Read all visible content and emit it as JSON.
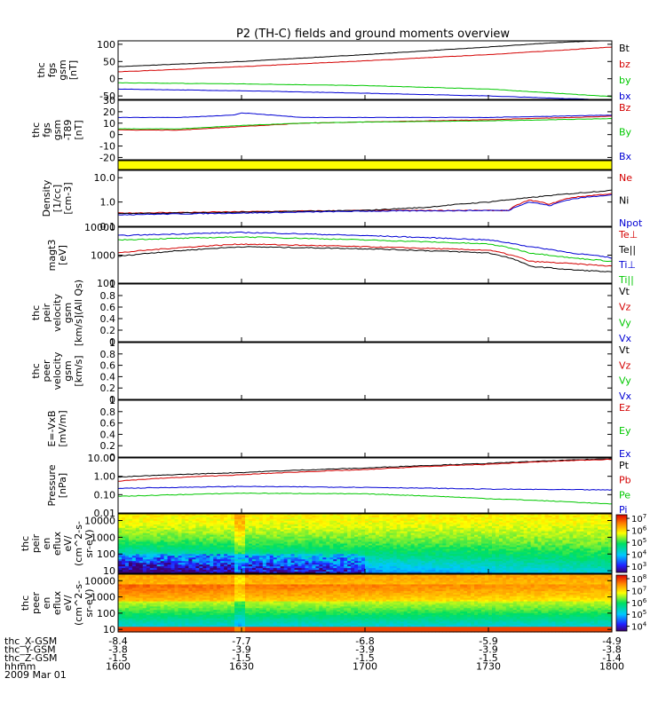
{
  "title": "P2 (TH-C) fields and ground moments overview",
  "chart_data": [
    {
      "type": "line",
      "ylabel_lines": [
        "thc",
        "fgs",
        "gsm",
        "[nT]"
      ],
      "ylim": [
        -60,
        110
      ],
      "yticks": [
        100,
        50,
        0,
        -50
      ],
      "legend_placement": "right",
      "series": [
        {
          "name": "Bt",
          "color": "#000000",
          "x": [
            0,
            30,
            60,
            90,
            105,
            120
          ],
          "y": [
            35,
            50,
            70,
            92,
            104,
            112
          ]
        },
        {
          "name": "bz",
          "color": "#d40000",
          "x": [
            0,
            30,
            60,
            90,
            120
          ],
          "y": [
            20,
            35,
            52,
            70,
            92
          ]
        },
        {
          "name": "by",
          "color": "#00c800",
          "x": [
            0,
            30,
            60,
            90,
            120
          ],
          "y": [
            -12,
            -15,
            -20,
            -30,
            -52
          ]
        },
        {
          "name": "bx",
          "color": "#0000d4",
          "x": [
            0,
            30,
            60,
            90,
            120
          ],
          "y": [
            -30,
            -35,
            -42,
            -50,
            -62
          ]
        }
      ]
    },
    {
      "type": "line",
      "ylabel_lines": [
        "thc",
        "fgs",
        "gsm",
        "-T89",
        "[nT]"
      ],
      "ylim": [
        -22,
        30
      ],
      "yticks": [
        30,
        20,
        10,
        0,
        -10,
        -20
      ],
      "legend_placement": "right",
      "series": [
        {
          "name": "Bz",
          "color": "#d40000",
          "x": [
            0,
            15,
            30,
            45,
            60,
            90,
            120
          ],
          "y": [
            4,
            4,
            7,
            10,
            11,
            13,
            16
          ]
        },
        {
          "name": "By",
          "color": "#00c800",
          "x": [
            0,
            15,
            30,
            45,
            60,
            90,
            120
          ],
          "y": [
            5,
            5,
            8,
            10,
            11,
            12,
            14
          ]
        },
        {
          "name": "Bx",
          "color": "#0000d4",
          "x": [
            0,
            15,
            28,
            30,
            45,
            60,
            90,
            120
          ],
          "y": [
            15,
            15,
            17,
            19,
            15,
            15,
            15,
            17
          ]
        }
      ]
    },
    {
      "type": "heatmap",
      "description_color": "#ffff00",
      "note": "quality flag bar"
    },
    {
      "type": "line",
      "ylabel_lines": [
        "Density",
        "[1/cc]",
        "[cm-3]"
      ],
      "yscale": "log",
      "ylim": [
        0.1,
        20
      ],
      "yticks": [
        10.0,
        1.0,
        0.1
      ],
      "ytick_labels": [
        "10.0",
        "1.0",
        "0.1"
      ],
      "legend_placement": "right",
      "series": [
        {
          "name": "Ne",
          "color": "#d40000",
          "x": [
            0,
            20,
            30,
            60,
            90,
            95,
            100,
            105,
            110,
            120
          ],
          "y": [
            0.35,
            0.38,
            0.4,
            0.45,
            0.45,
            0.45,
            1.2,
            0.8,
            1.5,
            2.2
          ]
        },
        {
          "name": "Ni",
          "color": "#000000",
          "x": [
            0,
            30,
            60,
            75,
            90,
            100,
            110,
            120
          ],
          "y": [
            0.33,
            0.38,
            0.45,
            0.6,
            1.0,
            1.5,
            2.2,
            3.0
          ]
        },
        {
          "name": "Npot",
          "color": "#0000d4",
          "x": [
            0,
            30,
            60,
            90,
            95,
            100,
            105,
            110,
            120
          ],
          "y": [
            0.3,
            0.35,
            0.42,
            0.45,
            0.45,
            1.0,
            0.7,
            1.3,
            2.0
          ]
        }
      ]
    },
    {
      "type": "line",
      "ylabel_lines": [
        "magt3",
        "[eV]"
      ],
      "yscale": "log",
      "ylim": [
        100,
        10000
      ],
      "yticks": [
        10000,
        1000,
        100
      ],
      "legend_placement": "right",
      "series": [
        {
          "name": "Te⊥",
          "color": "#d40000",
          "x": [
            0,
            30,
            60,
            90,
            100,
            110,
            120
          ],
          "y": [
            1200,
            2500,
            2000,
            1500,
            600,
            500,
            400
          ]
        },
        {
          "name": "Te||",
          "color": "#000000",
          "x": [
            0,
            30,
            60,
            90,
            100,
            110,
            120
          ],
          "y": [
            900,
            2000,
            1700,
            1200,
            400,
            300,
            250
          ]
        },
        {
          "name": "Ti⊥",
          "color": "#0000d4",
          "x": [
            0,
            30,
            60,
            90,
            100,
            110,
            120
          ],
          "y": [
            5000,
            6500,
            5000,
            3500,
            2000,
            1200,
            800
          ]
        },
        {
          "name": "Ti||",
          "color": "#00c800",
          "x": [
            0,
            30,
            60,
            90,
            100,
            110,
            120
          ],
          "y": [
            3500,
            4500,
            3500,
            2500,
            1200,
            800,
            600
          ]
        }
      ]
    },
    {
      "type": "line",
      "ylabel_lines": [
        "thc",
        "peir",
        "velocity",
        "gsm",
        "[km/s](All Qs)"
      ],
      "ylim": [
        0,
        1
      ],
      "yticks": [
        1.0,
        0.8,
        0.6,
        0.4,
        0.2,
        0.0
      ],
      "legend_placement": "right",
      "series": [
        {
          "name": "Vt",
          "color": "#000000",
          "x": [],
          "y": []
        },
        {
          "name": "Vz",
          "color": "#d40000",
          "x": [],
          "y": []
        },
        {
          "name": "Vy",
          "color": "#00c800",
          "x": [],
          "y": []
        },
        {
          "name": "Vx",
          "color": "#0000d4",
          "x": [],
          "y": []
        }
      ]
    },
    {
      "type": "line",
      "ylabel_lines": [
        "thc",
        "peer",
        "velocity",
        "gsm",
        "[km/s]"
      ],
      "ylim": [
        0,
        1
      ],
      "yticks": [
        1.0,
        0.8,
        0.6,
        0.4,
        0.2,
        0.0
      ],
      "legend_placement": "right",
      "series": [
        {
          "name": "Vt",
          "color": "#000000",
          "x": [],
          "y": []
        },
        {
          "name": "Vz",
          "color": "#d40000",
          "x": [],
          "y": []
        },
        {
          "name": "Vy",
          "color": "#00c800",
          "x": [],
          "y": []
        },
        {
          "name": "Vx",
          "color": "#0000d4",
          "x": [],
          "y": []
        }
      ]
    },
    {
      "type": "line",
      "ylabel_lines": [
        "E=-VxB",
        "[mV/m]"
      ],
      "ylim": [
        0,
        1
      ],
      "yticks": [
        1.0,
        0.8,
        0.6,
        0.4,
        0.2,
        0.0
      ],
      "legend_placement": "right",
      "series": [
        {
          "name": "Ez",
          "color": "#d40000",
          "x": [],
          "y": []
        },
        {
          "name": "Ey",
          "color": "#00c800",
          "x": [],
          "y": []
        },
        {
          "name": "Ex",
          "color": "#0000d4",
          "x": [],
          "y": []
        }
      ]
    },
    {
      "type": "line",
      "ylabel_lines": [
        "Pressure",
        "[nPa]"
      ],
      "yscale": "log",
      "ylim": [
        0.01,
        10
      ],
      "yticks": [
        10.0,
        1.0,
        0.1,
        0.01
      ],
      "ytick_labels": [
        "10.00",
        "1.00",
        "0.10",
        "0.01"
      ],
      "legend_placement": "right",
      "series": [
        {
          "name": "Pt",
          "color": "#000000",
          "x": [
            0,
            30,
            60,
            90,
            120
          ],
          "y": [
            0.9,
            1.6,
            2.8,
            5.0,
            9.0
          ]
        },
        {
          "name": "Pb",
          "color": "#d40000",
          "x": [
            0,
            30,
            60,
            90,
            120
          ],
          "y": [
            0.55,
            1.2,
            2.3,
            4.5,
            8.5
          ]
        },
        {
          "name": "Pe",
          "color": "#00c800",
          "x": [
            0,
            30,
            60,
            90,
            110,
            120
          ],
          "y": [
            0.08,
            0.12,
            0.11,
            0.06,
            0.04,
            0.03
          ]
        },
        {
          "name": "Pi",
          "color": "#0000d4",
          "x": [
            0,
            30,
            60,
            90,
            120
          ],
          "y": [
            0.22,
            0.28,
            0.25,
            0.2,
            0.18
          ]
        }
      ]
    },
    {
      "type": "heatmap",
      "ylabel_lines": [
        "thc",
        "peir",
        "en",
        "eflux",
        "eV/",
        "(cm^2-s-",
        "sr-eV)"
      ],
      "yscale": "log",
      "ylim": [
        7,
        25000
      ],
      "yticks": [
        10000,
        1000,
        100,
        10
      ],
      "colorbar": {
        "scale": "log",
        "min_exp": 2.5,
        "max_exp": 7.3,
        "tick_exps": [
          3,
          4,
          5,
          6,
          7
        ]
      }
    },
    {
      "type": "heatmap",
      "ylabel_lines": [
        "thc",
        "peer",
        "en",
        "eflux",
        "eV/",
        "(cm^2-s-",
        "sr-eV)"
      ],
      "yscale": "log",
      "ylim": [
        7,
        25000
      ],
      "yticks": [
        10000,
        1000,
        100,
        10
      ],
      "colorbar": {
        "scale": "log",
        "min_exp": 3.6,
        "max_exp": 8.3,
        "tick_exps": [
          4,
          5,
          6,
          7,
          8
        ]
      }
    }
  ],
  "xaxis": {
    "rows": [
      {
        "label": "thc_X-GSM",
        "values": [
          "-8.4",
          "-7.7",
          "-6.8",
          "-5.9",
          "-4.9"
        ]
      },
      {
        "label": "thc_Y-GSM",
        "values": [
          "-3.8",
          "-3.9",
          "-3.9",
          "-3.9",
          "-3.8"
        ]
      },
      {
        "label": "thc_Z-GSM",
        "values": [
          "-1.5",
          "-1.5",
          "-1.5",
          "-1.5",
          "-1.4"
        ]
      },
      {
        "label": "hhmm",
        "values": [
          "1600",
          "1630",
          "1700",
          "1730",
          "1800"
        ]
      }
    ],
    "date": "2009 Mar 01",
    "minutes_range": [
      0,
      120
    ]
  }
}
